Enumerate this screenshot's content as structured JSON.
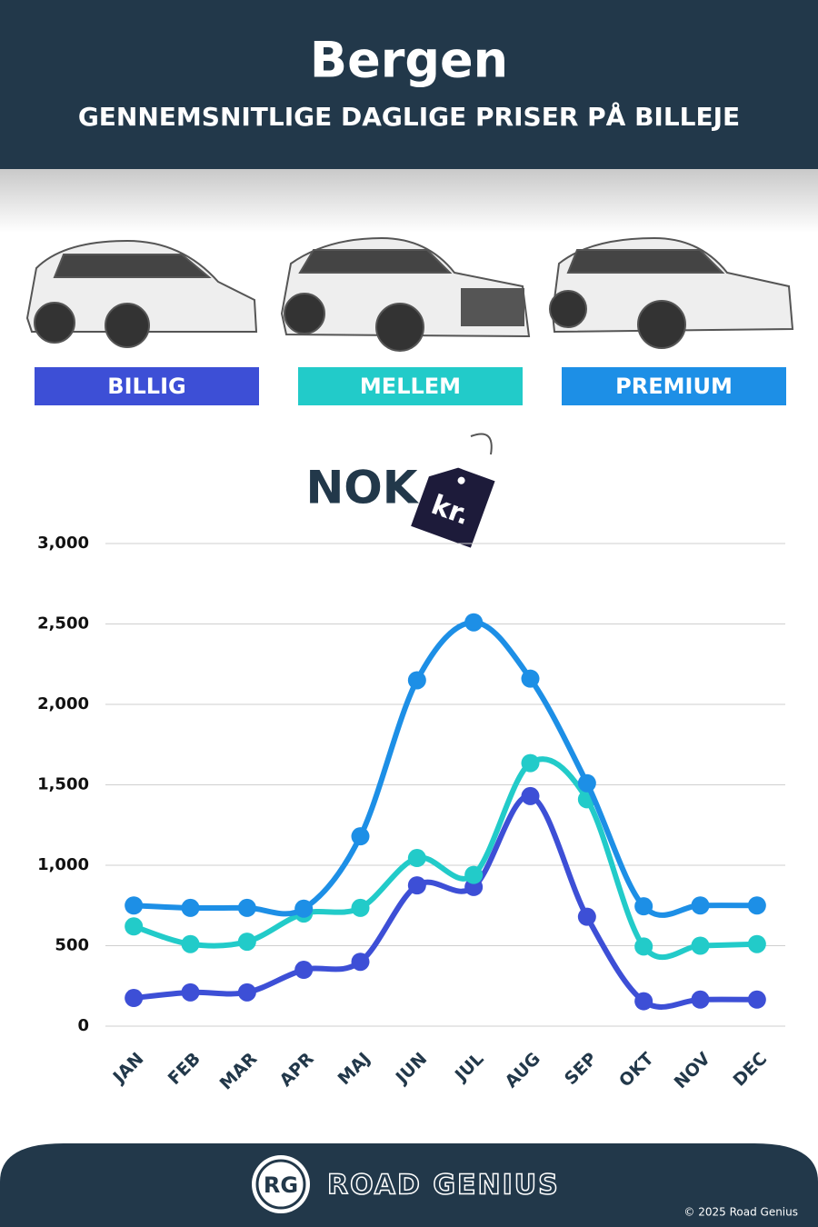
{
  "header": {
    "title": "Bergen",
    "subtitle": "GENNEMSNITLIGE DAGLIGE PRISER PÅ BILLEJE"
  },
  "chart_data": {
    "type": "line",
    "unit_label": "NOK",
    "unit_tag": "kr.",
    "categories": [
      "JAN",
      "FEB",
      "MAR",
      "APR",
      "MAJ",
      "JUN",
      "JUL",
      "AUG",
      "SEP",
      "OKT",
      "NOV",
      "DEC"
    ],
    "series": [
      {
        "name": "BILLIG",
        "color": "#3d4fd6",
        "values": [
          175,
          210,
          210,
          350,
          400,
          875,
          865,
          1430,
          680,
          155,
          165,
          165
        ]
      },
      {
        "name": "MELLEM",
        "color": "#22cbc9",
        "values": [
          620,
          510,
          525,
          700,
          735,
          1045,
          940,
          1635,
          1410,
          495,
          500,
          510
        ]
      },
      {
        "name": "PREMIUM",
        "color": "#1d8fe6",
        "values": [
          750,
          735,
          735,
          730,
          1180,
          2150,
          2510,
          2160,
          1510,
          745,
          750,
          750
        ]
      }
    ],
    "ylim": [
      0,
      3000
    ],
    "yticks": [
      0,
      500,
      {
        "value": 1000,
        "label": "1,000"
      },
      {
        "value": 1500,
        "label": "1,500"
      },
      {
        "value": 2000,
        "label": "2,000"
      },
      {
        "value": 2500,
        "label": "2,500"
      },
      {
        "value": 3000,
        "label": "3,000"
      }
    ],
    "grid": true
  },
  "footer": {
    "logo": "RG",
    "brand": "ROAD GENIUS",
    "copyright": "© 2025 Road Genius"
  }
}
